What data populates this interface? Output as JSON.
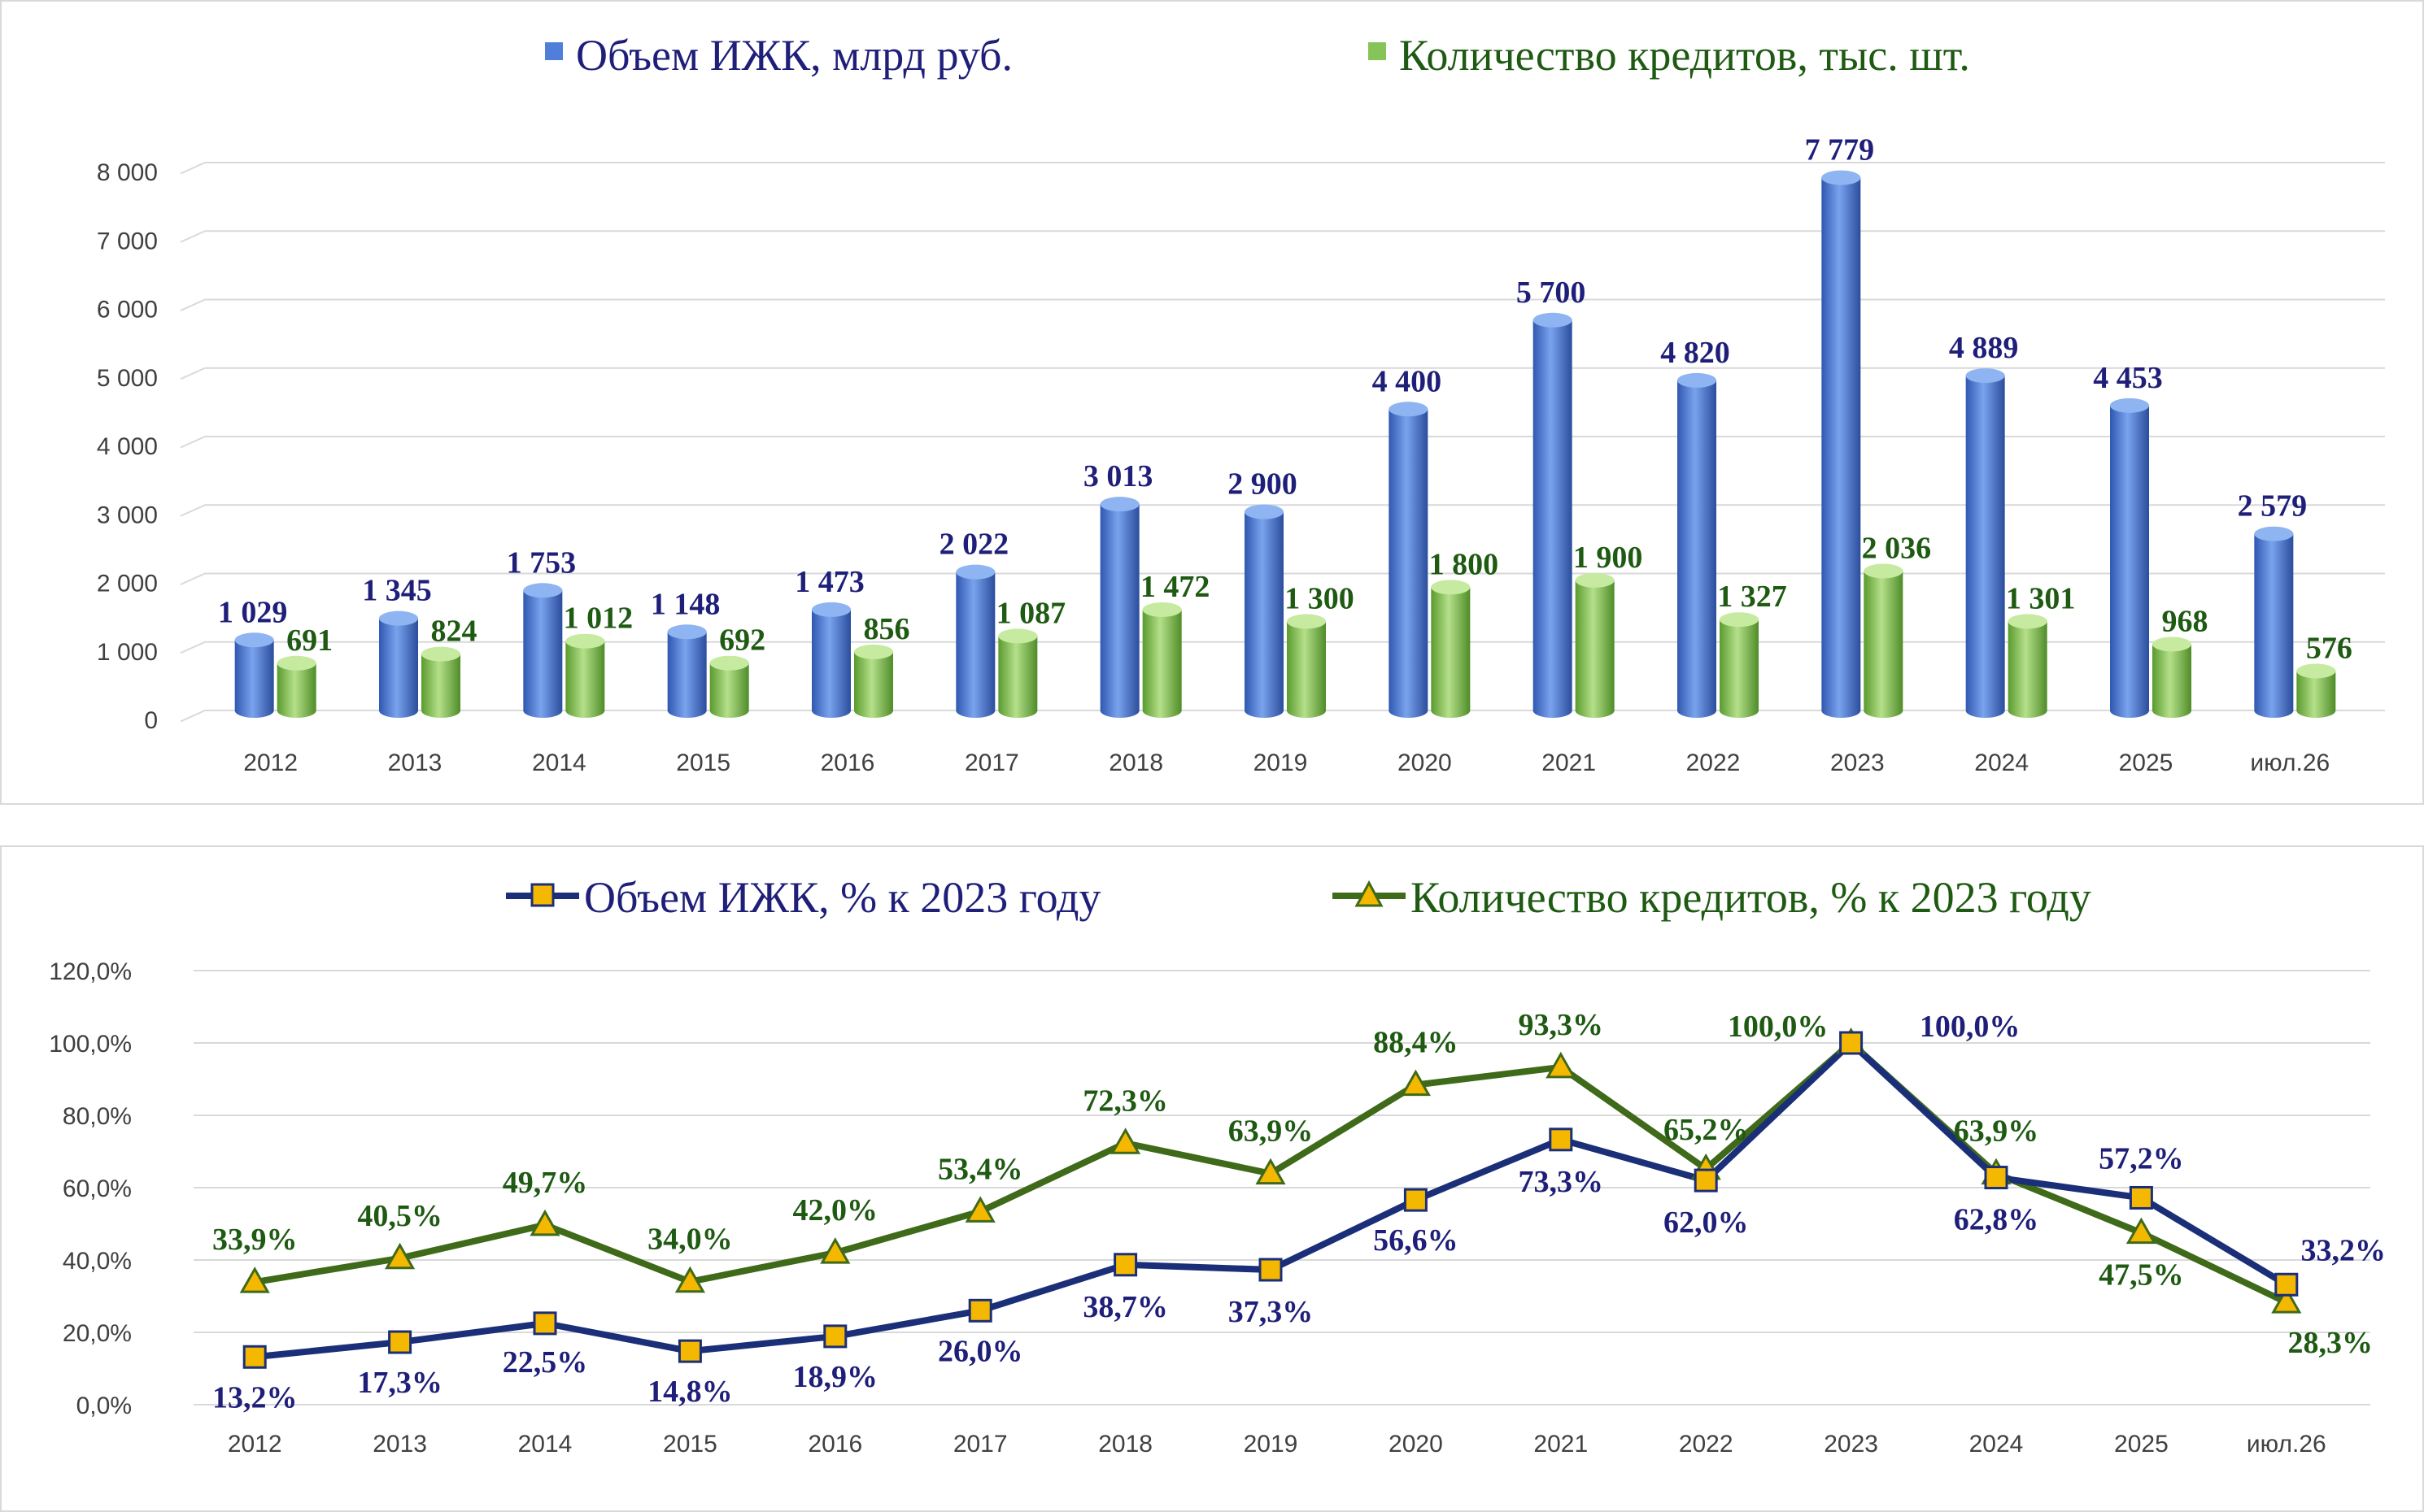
{
  "colors": {
    "volume": "#1f1f7a",
    "count": "#1e5a12",
    "bar_volume": "#4f7fd8",
    "bar_count": "#86c45a",
    "line_volume": "#1b2f78",
    "line_count": "#3f6a1a",
    "marker": "#f5b800",
    "grid": "#d9d9d9"
  },
  "chart_data": [
    {
      "type": "bar",
      "categories": [
        "2012",
        "2013",
        "2014",
        "2015",
        "2016",
        "2017",
        "2018",
        "2019",
        "2020",
        "2021",
        "2022",
        "2023",
        "2024",
        "2025",
        "июл.26"
      ],
      "series": [
        {
          "name": "Объем ИЖК, млрд руб.",
          "values": [
            1029,
            1345,
            1753,
            1148,
            1473,
            2022,
            3013,
            2900,
            4400,
            5700,
            4820,
            7779,
            4889,
            4453,
            2579
          ],
          "labels": [
            "1 029",
            "1 345",
            "1 753",
            "1 148",
            "1 473",
            "2 022",
            "3 013",
            "2 900",
            "4 400",
            "5 700",
            "4 820",
            "7 779",
            "4 889",
            "4 453",
            "2 579"
          ]
        },
        {
          "name": "Количество кредитов, тыс. шт.",
          "values": [
            691,
            824,
            1012,
            692,
            856,
            1087,
            1472,
            1300,
            1800,
            1900,
            1327,
            2036,
            1301,
            968,
            576
          ],
          "labels": [
            "691",
            "824",
            "1 012",
            "692",
            "856",
            "1 087",
            "1 472",
            "1 300",
            "1 800",
            "1 900",
            "1 327",
            "2 036",
            "1 301",
            "968",
            "576"
          ]
        }
      ],
      "ylim": [
        0,
        8000
      ],
      "yticks": [
        "0",
        "1 000",
        "2 000",
        "3 000",
        "4 000",
        "5 000",
        "6 000",
        "7 000",
        "8 000"
      ],
      "legend": "top",
      "grid": true
    },
    {
      "type": "line",
      "categories": [
        "2012",
        "2013",
        "2014",
        "2015",
        "2016",
        "2017",
        "2018",
        "2019",
        "2020",
        "2021",
        "2022",
        "2023",
        "2024",
        "2025",
        "июл.26"
      ],
      "series": [
        {
          "name": "Объем ИЖК, % к 2023 году",
          "values": [
            13.2,
            17.3,
            22.5,
            14.8,
            18.9,
            26.0,
            38.7,
            37.3,
            56.6,
            73.3,
            62.0,
            100.0,
            62.8,
            57.2,
            33.2
          ],
          "labels": [
            "13,2%",
            "17,3%",
            "22,5%",
            "14,8%",
            "18,9%",
            "26,0%",
            "38,7%",
            "37,3%",
            "56,6%",
            "73,3%",
            "62,0%",
            "100,0%",
            "62,8%",
            "57,2%",
            "33,2%"
          ]
        },
        {
          "name": "Количество кредитов, % к 2023 году",
          "values": [
            33.9,
            40.5,
            49.7,
            34.0,
            42.0,
            53.4,
            72.3,
            63.9,
            88.4,
            93.3,
            65.2,
            100.0,
            63.9,
            47.5,
            28.3
          ],
          "labels": [
            "33,9%",
            "40,5%",
            "49,7%",
            "34,0%",
            "42,0%",
            "53,4%",
            "72,3%",
            "63,9%",
            "88,4%",
            "93,3%",
            "65,2%",
            "100,0%",
            "63,9%",
            "47,5%",
            "28,3%"
          ]
        }
      ],
      "ylim": [
        0,
        120
      ],
      "yticks": [
        "0,0%",
        "20,0%",
        "40,0%",
        "60,0%",
        "80,0%",
        "100,0%",
        "120,0%"
      ],
      "legend": "top",
      "grid": true
    }
  ]
}
